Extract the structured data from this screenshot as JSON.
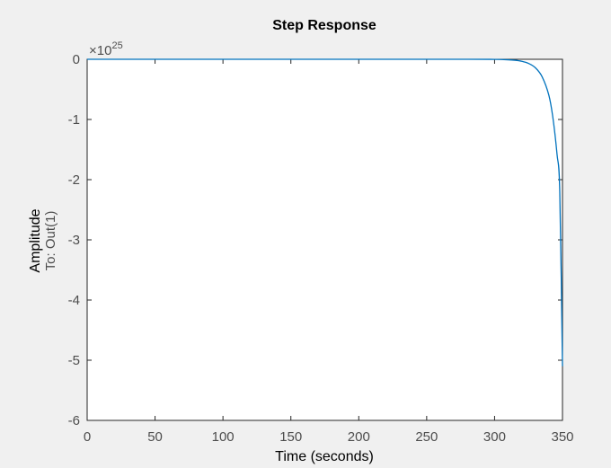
{
  "chart_data": {
    "type": "line",
    "title": "Step Response",
    "xlabel": "Time (seconds)",
    "ylabel": "Amplitude",
    "ylabel_sub": "To: Out(1)",
    "exponent_base": "×10",
    "exponent_power": "25",
    "xlim": [
      0,
      350
    ],
    "ylim": [
      -6,
      0
    ],
    "xticks": [
      0,
      50,
      100,
      150,
      200,
      250,
      300,
      350
    ],
    "yticks": [
      0,
      -1,
      -2,
      -3,
      -4,
      -5,
      -6
    ],
    "grid": false,
    "series": [
      {
        "color": "#0072bd",
        "x": [
          0,
          100,
          200,
          280,
          300,
          310,
          315,
          320,
          325,
          330,
          335,
          340,
          343,
          346,
          348,
          350
        ],
        "y": [
          0,
          0,
          0,
          -0.0001,
          -0.002,
          -0.008,
          -0.016,
          -0.033,
          -0.068,
          -0.14,
          -0.29,
          -0.6,
          -0.98,
          -1.58,
          -2.2,
          -5.1
        ]
      }
    ]
  }
}
